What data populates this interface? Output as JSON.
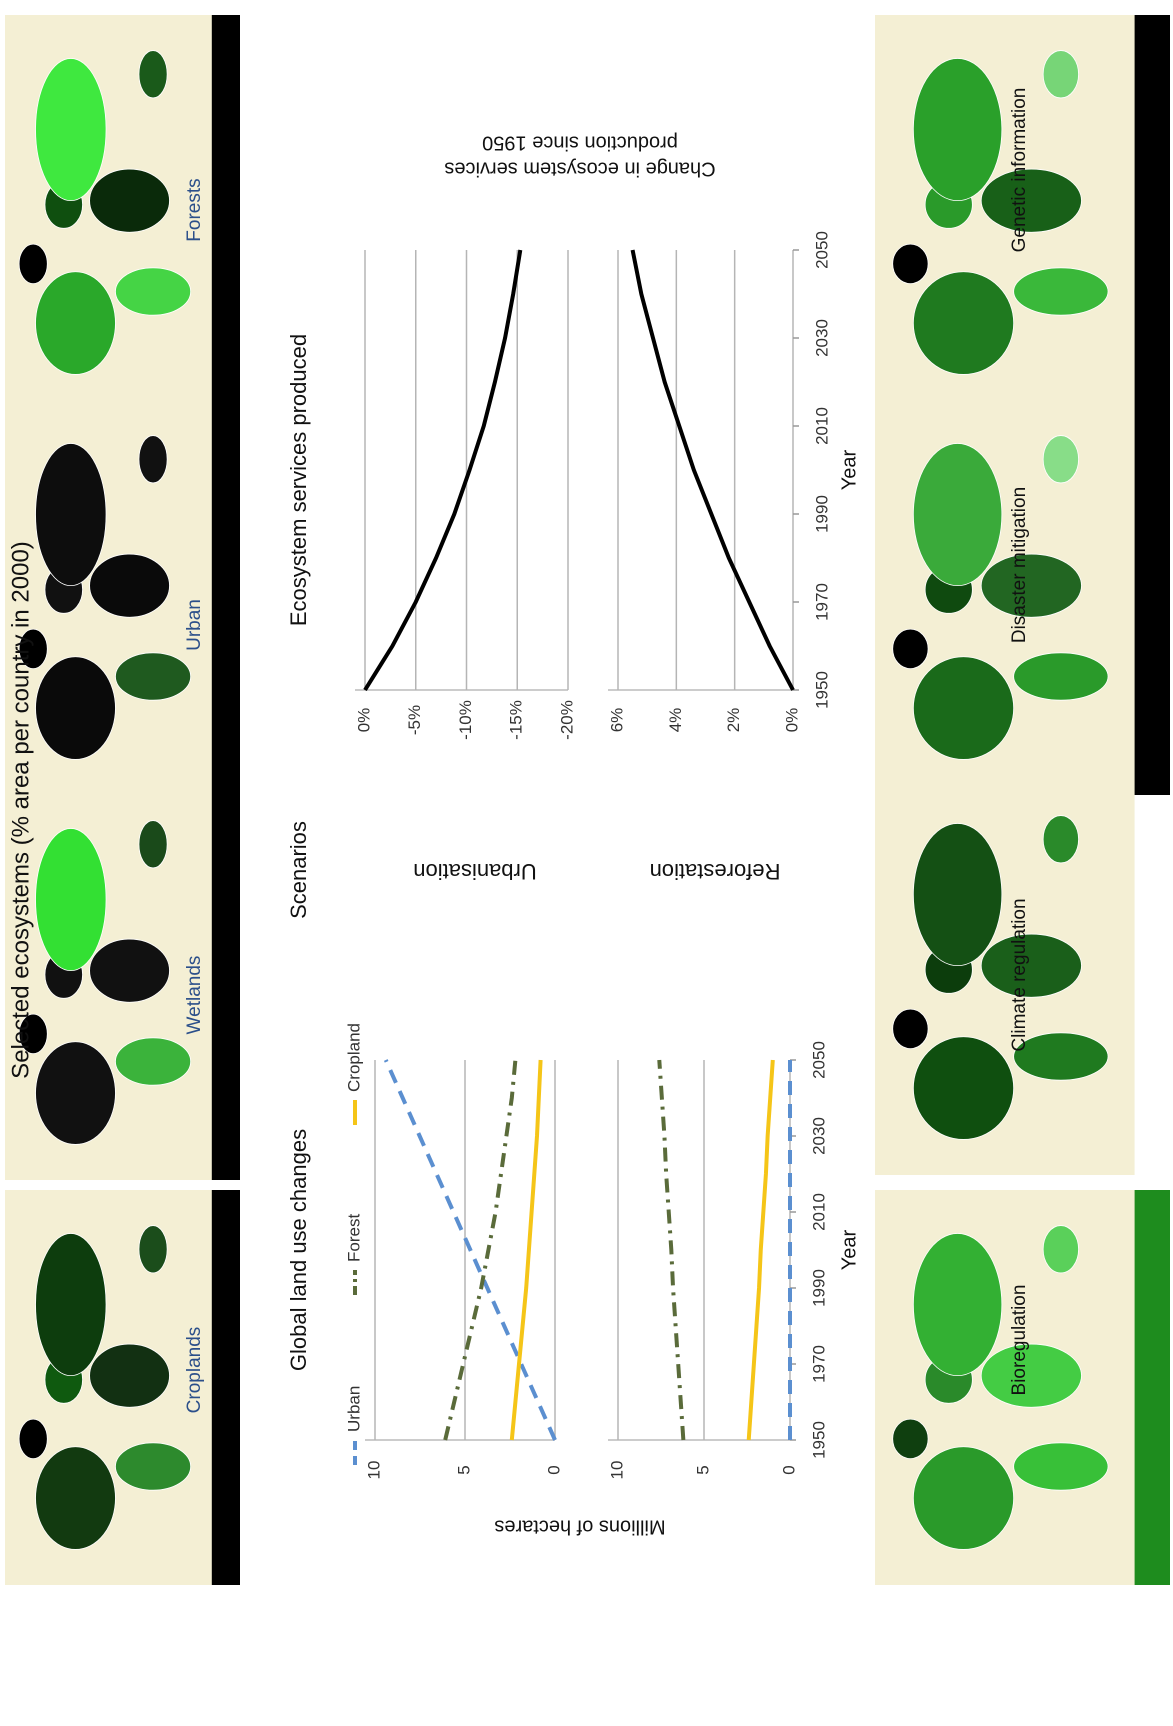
{
  "title": "Selected ecosystems (% area per country in 2000)",
  "ecosystem_maps": [
    "Croplands",
    "Wetlands",
    "Urban",
    "Forests"
  ],
  "section_titles": [
    "Global land use changes",
    "Scenarios",
    "Ecosystem services produced"
  ],
  "scenarios": [
    "Urbanisation",
    "Reforestation"
  ],
  "service_maps": [
    "Bioregulation",
    "Climate regulation",
    "Disaster mitigation",
    "Genetic information"
  ],
  "chart_data": [
    {
      "type": "line",
      "ylabel": "Millions of hectares",
      "x": [
        1950,
        1960,
        1970,
        1980,
        1990,
        2000,
        2010,
        2020,
        2030,
        2040,
        2050
      ],
      "xlim": [
        1950,
        2050
      ],
      "ylim": [
        0,
        10
      ],
      "yticks": [
        0,
        5,
        10
      ],
      "grid": true,
      "legend": "top",
      "series": [
        {
          "name": "Urban",
          "color": "#5b8fd0",
          "dash": "dashed",
          "values": [
            0,
            0.94,
            1.88,
            2.82,
            3.76,
            4.7,
            5.64,
            6.58,
            7.52,
            8.46,
            9.4
          ]
        },
        {
          "name": "Forest",
          "color": "#5a6b3a",
          "dash": "dashdot",
          "values": [
            6.1,
            5.6,
            5.1,
            4.6,
            4.1,
            3.7,
            3.3,
            3.0,
            2.7,
            2.4,
            2.2
          ]
        },
        {
          "name": "Cropland",
          "color": "#f5c518",
          "dash": "solid",
          "values": [
            2.4,
            2.2,
            2.0,
            1.8,
            1.6,
            1.45,
            1.3,
            1.15,
            1.0,
            0.9,
            0.8
          ]
        }
      ]
    },
    {
      "type": "line",
      "xlabel": "Year",
      "x": [
        1950,
        1960,
        1970,
        1980,
        1990,
        2000,
        2010,
        2020,
        2030,
        2040,
        2050
      ],
      "xlim": [
        1950,
        2050
      ],
      "xticks": [
        1950,
        1970,
        1990,
        2010,
        2030,
        2050
      ],
      "ylim": [
        0,
        10
      ],
      "yticks": [
        0,
        5,
        10
      ],
      "grid": true,
      "series": [
        {
          "color": "#5b8fd0",
          "dash": "dashed",
          "values": [
            0,
            0,
            0,
            0,
            0,
            0,
            0,
            0,
            0,
            0,
            0
          ]
        },
        {
          "color": "#5a6b3a",
          "dash": "dashdot",
          "values": [
            6.2,
            6.35,
            6.5,
            6.65,
            6.8,
            6.9,
            7.05,
            7.2,
            7.3,
            7.45,
            7.6
          ]
        },
        {
          "color": "#f5c518",
          "dash": "solid",
          "values": [
            2.4,
            2.25,
            2.1,
            1.95,
            1.8,
            1.7,
            1.55,
            1.4,
            1.3,
            1.15,
            1.0
          ]
        }
      ]
    },
    {
      "type": "line",
      "ylabel": [
        "Change in ecosystem services",
        "production since 1950"
      ],
      "x": [
        1950,
        1960,
        1970,
        1980,
        1990,
        2000,
        2010,
        2020,
        2030,
        2040,
        2050
      ],
      "xlim": [
        1950,
        2050
      ],
      "ylim": [
        -20,
        0
      ],
      "yticks": [
        {
          "value": 0,
          "label": "0%"
        },
        {
          "value": -5,
          "label": "-5%"
        },
        {
          "value": -10,
          "label": "-10%"
        },
        {
          "value": -15,
          "label": "-15%"
        },
        {
          "value": -20,
          "label": "-20%"
        }
      ],
      "grid": true,
      "series": [
        {
          "color": "#000000",
          "dash": "solid",
          "values": [
            0,
            -2.7,
            -5,
            -7,
            -8.8,
            -10.3,
            -11.7,
            -12.8,
            -13.8,
            -14.6,
            -15.3
          ]
        }
      ]
    },
    {
      "type": "line",
      "xlabel": "Year",
      "x": [
        1950,
        1960,
        1970,
        1980,
        1990,
        2000,
        2010,
        2020,
        2030,
        2040,
        2050
      ],
      "xlim": [
        1950,
        2050
      ],
      "xticks": [
        1950,
        1970,
        1990,
        2010,
        2030,
        2050
      ],
      "ylim": [
        0,
        6
      ],
      "yticks": [
        {
          "value": 0,
          "label": "0%"
        },
        {
          "value": 2,
          "label": "2%"
        },
        {
          "value": 4,
          "label": "4%"
        },
        {
          "value": 6,
          "label": "6%"
        }
      ],
      "grid": true,
      "series": [
        {
          "color": "#000000",
          "dash": "solid",
          "values": [
            0,
            0.8,
            1.5,
            2.2,
            2.8,
            3.4,
            3.9,
            4.4,
            4.8,
            5.2,
            5.5
          ]
        }
      ]
    }
  ]
}
